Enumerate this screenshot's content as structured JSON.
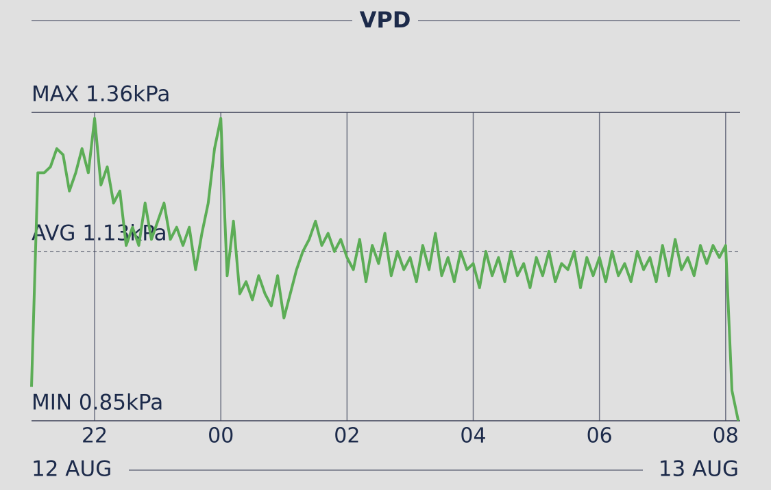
{
  "chart_data": {
    "type": "line",
    "title": "VPD",
    "color": "#5cad56",
    "xlim": [
      21,
      32.23
    ],
    "xticks": [
      22,
      {
        "value": 24,
        "label": "00"
      },
      {
        "value": 26,
        "label": "02"
      },
      {
        "value": 28,
        "label": "04"
      },
      {
        "value": 30,
        "label": "06"
      },
      {
        "value": 32,
        "label": "08"
      }
    ],
    "ylim": [
      0.85,
      1.36
    ],
    "yticks": [
      {
        "value": 1.36,
        "label": "MAX 1.36kPa"
      },
      {
        "value": 1.13,
        "label": "AVG 1.13kPa"
      },
      {
        "value": 0.85,
        "label": "MIN 0.85kPa"
      }
    ],
    "start_date": "12 AUG",
    "end_date": "13 AUG",
    "x": [
      21.0,
      21.1,
      21.2,
      21.3,
      21.4,
      21.5,
      21.6,
      21.7,
      21.8,
      21.9,
      22.0,
      22.1,
      22.2,
      22.3,
      22.4,
      22.5,
      22.6,
      22.7,
      22.8,
      22.9,
      23.0,
      23.1,
      23.2,
      23.3,
      23.4,
      23.5,
      23.6,
      23.7,
      23.8,
      23.9,
      24.0,
      24.1,
      24.2,
      24.3,
      24.4,
      24.5,
      24.6,
      24.7,
      24.8,
      24.9,
      25.0,
      25.1,
      25.2,
      25.3,
      25.4,
      25.5,
      25.6,
      25.7,
      25.8,
      25.9,
      26.0,
      26.1,
      26.2,
      26.3,
      26.4,
      26.5,
      26.6,
      26.7,
      26.8,
      26.9,
      27.0,
      27.1,
      27.2,
      27.3,
      27.4,
      27.5,
      27.6,
      27.7,
      27.8,
      27.9,
      28.0,
      28.1,
      28.2,
      28.3,
      28.4,
      28.5,
      28.6,
      28.7,
      28.8,
      28.9,
      29.0,
      29.1,
      29.2,
      29.3,
      29.4,
      29.5,
      29.6,
      29.7,
      29.8,
      29.9,
      30.0,
      30.1,
      30.2,
      30.3,
      30.4,
      30.5,
      30.6,
      30.7,
      30.8,
      30.9,
      31.0,
      31.1,
      31.2,
      31.3,
      31.4,
      31.5,
      31.6,
      31.7,
      31.8,
      31.9,
      32.0,
      32.1,
      32.2
    ],
    "values": [
      0.906,
      1.26,
      1.26,
      1.27,
      1.3,
      1.29,
      1.23,
      1.26,
      1.3,
      1.26,
      1.35,
      1.24,
      1.27,
      1.21,
      1.23,
      1.14,
      1.17,
      1.14,
      1.21,
      1.15,
      1.18,
      1.21,
      1.15,
      1.17,
      1.14,
      1.17,
      1.1,
      1.16,
      1.21,
      1.3,
      1.35,
      1.09,
      1.18,
      1.06,
      1.08,
      1.05,
      1.09,
      1.06,
      1.04,
      1.09,
      1.02,
      1.06,
      1.1,
      1.13,
      1.15,
      1.18,
      1.14,
      1.16,
      1.13,
      1.15,
      1.12,
      1.1,
      1.15,
      1.08,
      1.14,
      1.11,
      1.16,
      1.09,
      1.13,
      1.1,
      1.12,
      1.08,
      1.14,
      1.1,
      1.16,
      1.09,
      1.12,
      1.08,
      1.13,
      1.1,
      1.11,
      1.07,
      1.13,
      1.09,
      1.12,
      1.08,
      1.13,
      1.09,
      1.11,
      1.07,
      1.12,
      1.09,
      1.13,
      1.08,
      1.11,
      1.1,
      1.13,
      1.07,
      1.12,
      1.09,
      1.12,
      1.08,
      1.13,
      1.09,
      1.11,
      1.08,
      1.13,
      1.1,
      1.12,
      1.08,
      1.14,
      1.09,
      1.15,
      1.1,
      1.12,
      1.09,
      1.14,
      1.11,
      1.14,
      1.12,
      1.14,
      0.9,
      0.85
    ]
  }
}
